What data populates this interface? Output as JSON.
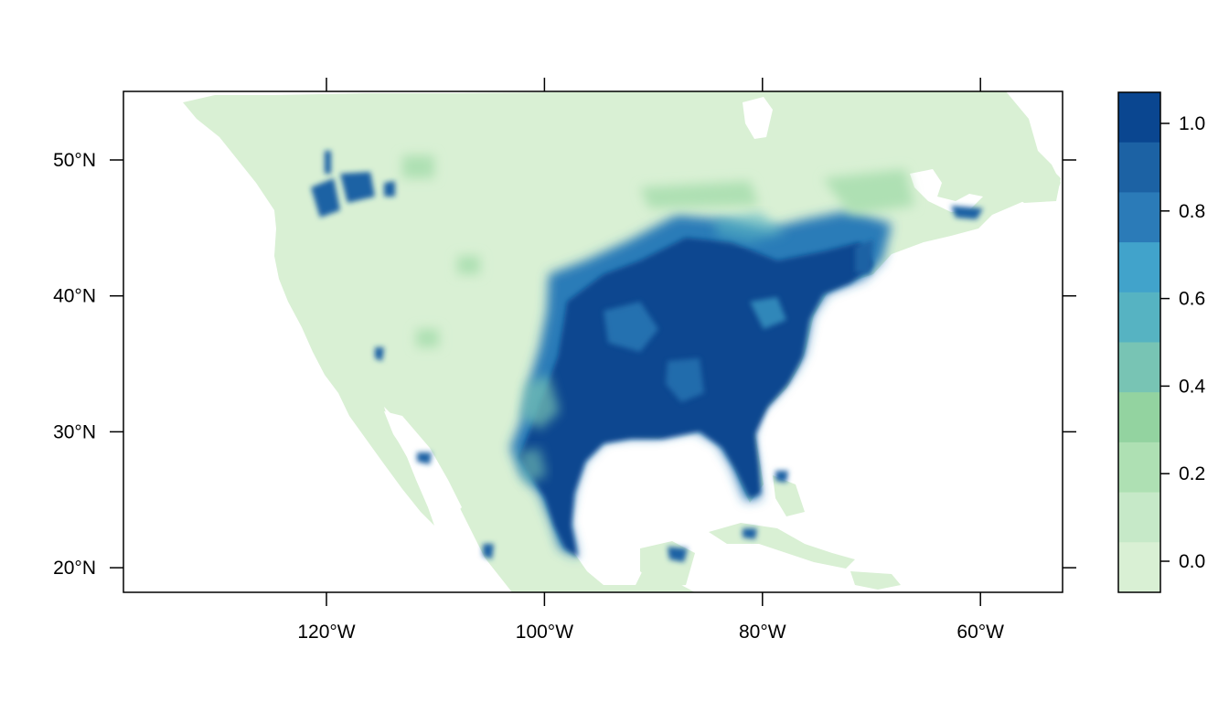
{
  "map": {
    "x_axis": {
      "ticks": [
        {
          "value": -120,
          "label": "120°W"
        },
        {
          "value": -100,
          "label": "100°W"
        },
        {
          "value": -80,
          "label": "80°W"
        },
        {
          "value": -60,
          "label": "60°W"
        }
      ]
    },
    "y_axis": {
      "ticks": [
        {
          "value": 50,
          "label": "50°N"
        },
        {
          "value": 40,
          "label": "40°N"
        },
        {
          "value": 30,
          "label": "30°N"
        },
        {
          "value": 20,
          "label": "20°N"
        }
      ]
    },
    "legend": {
      "labels": [
        "1.0",
        "0.8",
        "0.6",
        "0.4",
        "0.2",
        "0.0"
      ],
      "colors_top_to_bottom": [
        "#0a4690",
        "#1c62a4",
        "#2b7bb8",
        "#41a3cb",
        "#56b3c2",
        "#78c4b4",
        "#93d3a0",
        "#aee0b3",
        "#c6e9c8",
        "#d9f0d4"
      ]
    },
    "colors": {
      "land_low": "#d9f0d4",
      "land_high": "#0a4690",
      "water": "#ffffff"
    }
  }
}
